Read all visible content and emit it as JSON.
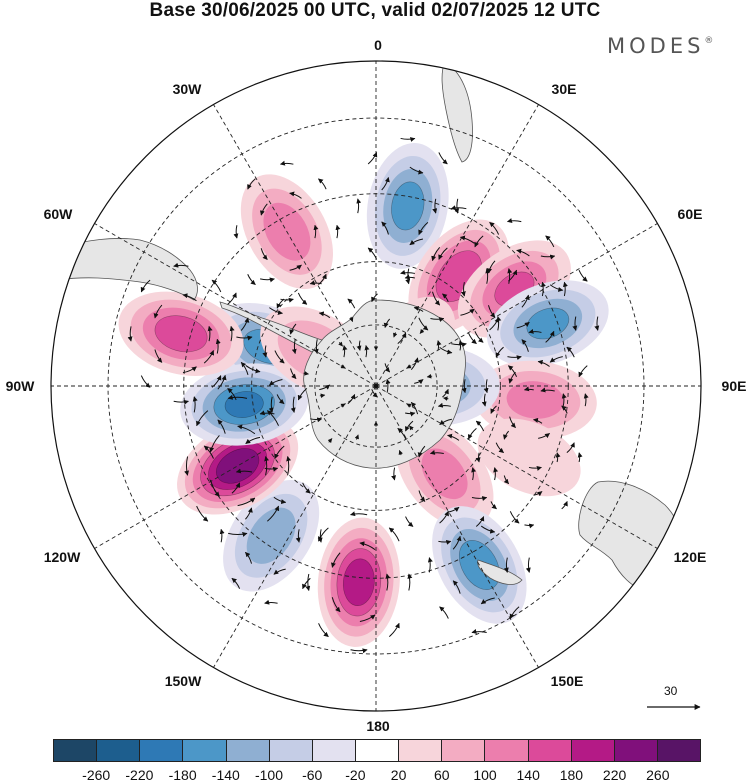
{
  "header": {
    "title": "Base 30/06/2025 00 UTC, valid 02/07/2025 12 UTC",
    "logo": "MODES",
    "logo_mark": "®"
  },
  "map": {
    "projection": "south-polar-stereographic",
    "longitude_labels": [
      "0",
      "30E",
      "60E",
      "90E",
      "120E",
      "150E",
      "180",
      "150W",
      "120W",
      "90W",
      "60W",
      "30W"
    ],
    "reference_vector": "30",
    "land_color": "#e6e6e6"
  },
  "anomaly_centers": [
    {
      "lon": 290,
      "lat": -62,
      "value": -160
    },
    {
      "lon": 330,
      "lat": -48,
      "value": 130
    },
    {
      "lon": 10,
      "lat": -47,
      "value": -160
    },
    {
      "lon": 37,
      "lat": -57,
      "value": 180
    },
    {
      "lon": 55,
      "lat": -50,
      "value": 150
    },
    {
      "lon": 70,
      "lat": -47,
      "value": -150
    },
    {
      "lon": 95,
      "lat": -52,
      "value": 120
    },
    {
      "lon": 90,
      "lat": -75,
      "value": -140
    },
    {
      "lon": 142,
      "lat": -63,
      "value": 120
    },
    {
      "lon": 150,
      "lat": -42,
      "value": -170
    },
    {
      "lon": 115,
      "lat": -50,
      "value": 50
    },
    {
      "lon": 185,
      "lat": -44,
      "value": 210
    },
    {
      "lon": 215,
      "lat": -47,
      "value": -130
    },
    {
      "lon": 240,
      "lat": -52,
      "value": 260
    },
    {
      "lon": 262,
      "lat": -58,
      "value": -190
    },
    {
      "lon": 285,
      "lat": -43,
      "value": 170
    },
    {
      "lon": 300,
      "lat": -73,
      "value": 100
    },
    {
      "lon": 40,
      "lat": -77,
      "value": 60
    }
  ],
  "colorbar": {
    "labels": [
      "-260",
      "-220",
      "-180",
      "-140",
      "-100",
      "-60",
      "-20",
      "20",
      "60",
      "100",
      "140",
      "180",
      "220",
      "260"
    ],
    "colors": [
      "#1d4666",
      "#1d5e8e",
      "#2e79b5",
      "#4c97c8",
      "#8fafd2",
      "#c5cde6",
      "#e3e1f0",
      "#ffffff",
      "#f7d5db",
      "#f3acc2",
      "#ec7ead",
      "#dc4a9a",
      "#b41a86",
      "#80107b",
      "#581466"
    ]
  }
}
